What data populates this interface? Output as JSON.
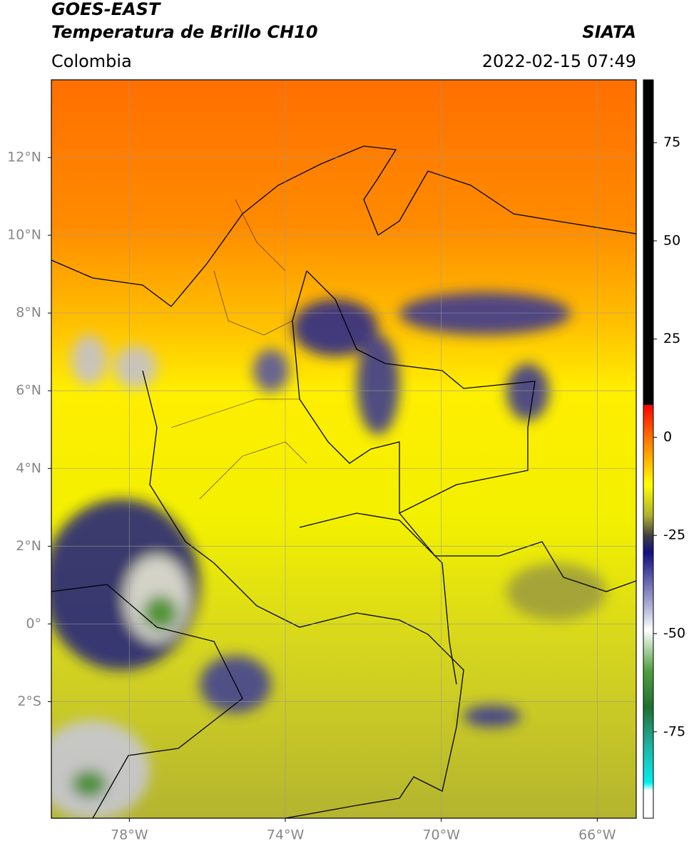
{
  "header": {
    "satellite": "GOES-EAST",
    "product": "Temperatura de Brillo CH10",
    "source": "SIATA",
    "region": "Colombia",
    "datetime": "2022-02-15 07:49"
  },
  "map": {
    "xlim": [
      -80,
      -65
    ],
    "ylim": [
      -5,
      14
    ],
    "xticks": [
      {
        "value": -78,
        "label": "78°W"
      },
      {
        "value": -74,
        "label": "74°W"
      },
      {
        "value": -70,
        "label": "70°W"
      },
      {
        "value": -66,
        "label": "66°W"
      }
    ],
    "yticks": [
      {
        "value": 12,
        "label": "12°N"
      },
      {
        "value": 10,
        "label": "10°N"
      },
      {
        "value": 8,
        "label": "8°N"
      },
      {
        "value": 6,
        "label": "6°N"
      },
      {
        "value": 4,
        "label": "4°N"
      },
      {
        "value": 2,
        "label": "2°N"
      },
      {
        "value": 0,
        "label": "0°"
      },
      {
        "value": -2,
        "label": "2°S"
      }
    ],
    "grid": true
  },
  "colorbar": {
    "lim": [
      -97,
      91
    ],
    "ticks": [
      75,
      50,
      25,
      0,
      -25,
      -50,
      -75
    ]
  }
}
